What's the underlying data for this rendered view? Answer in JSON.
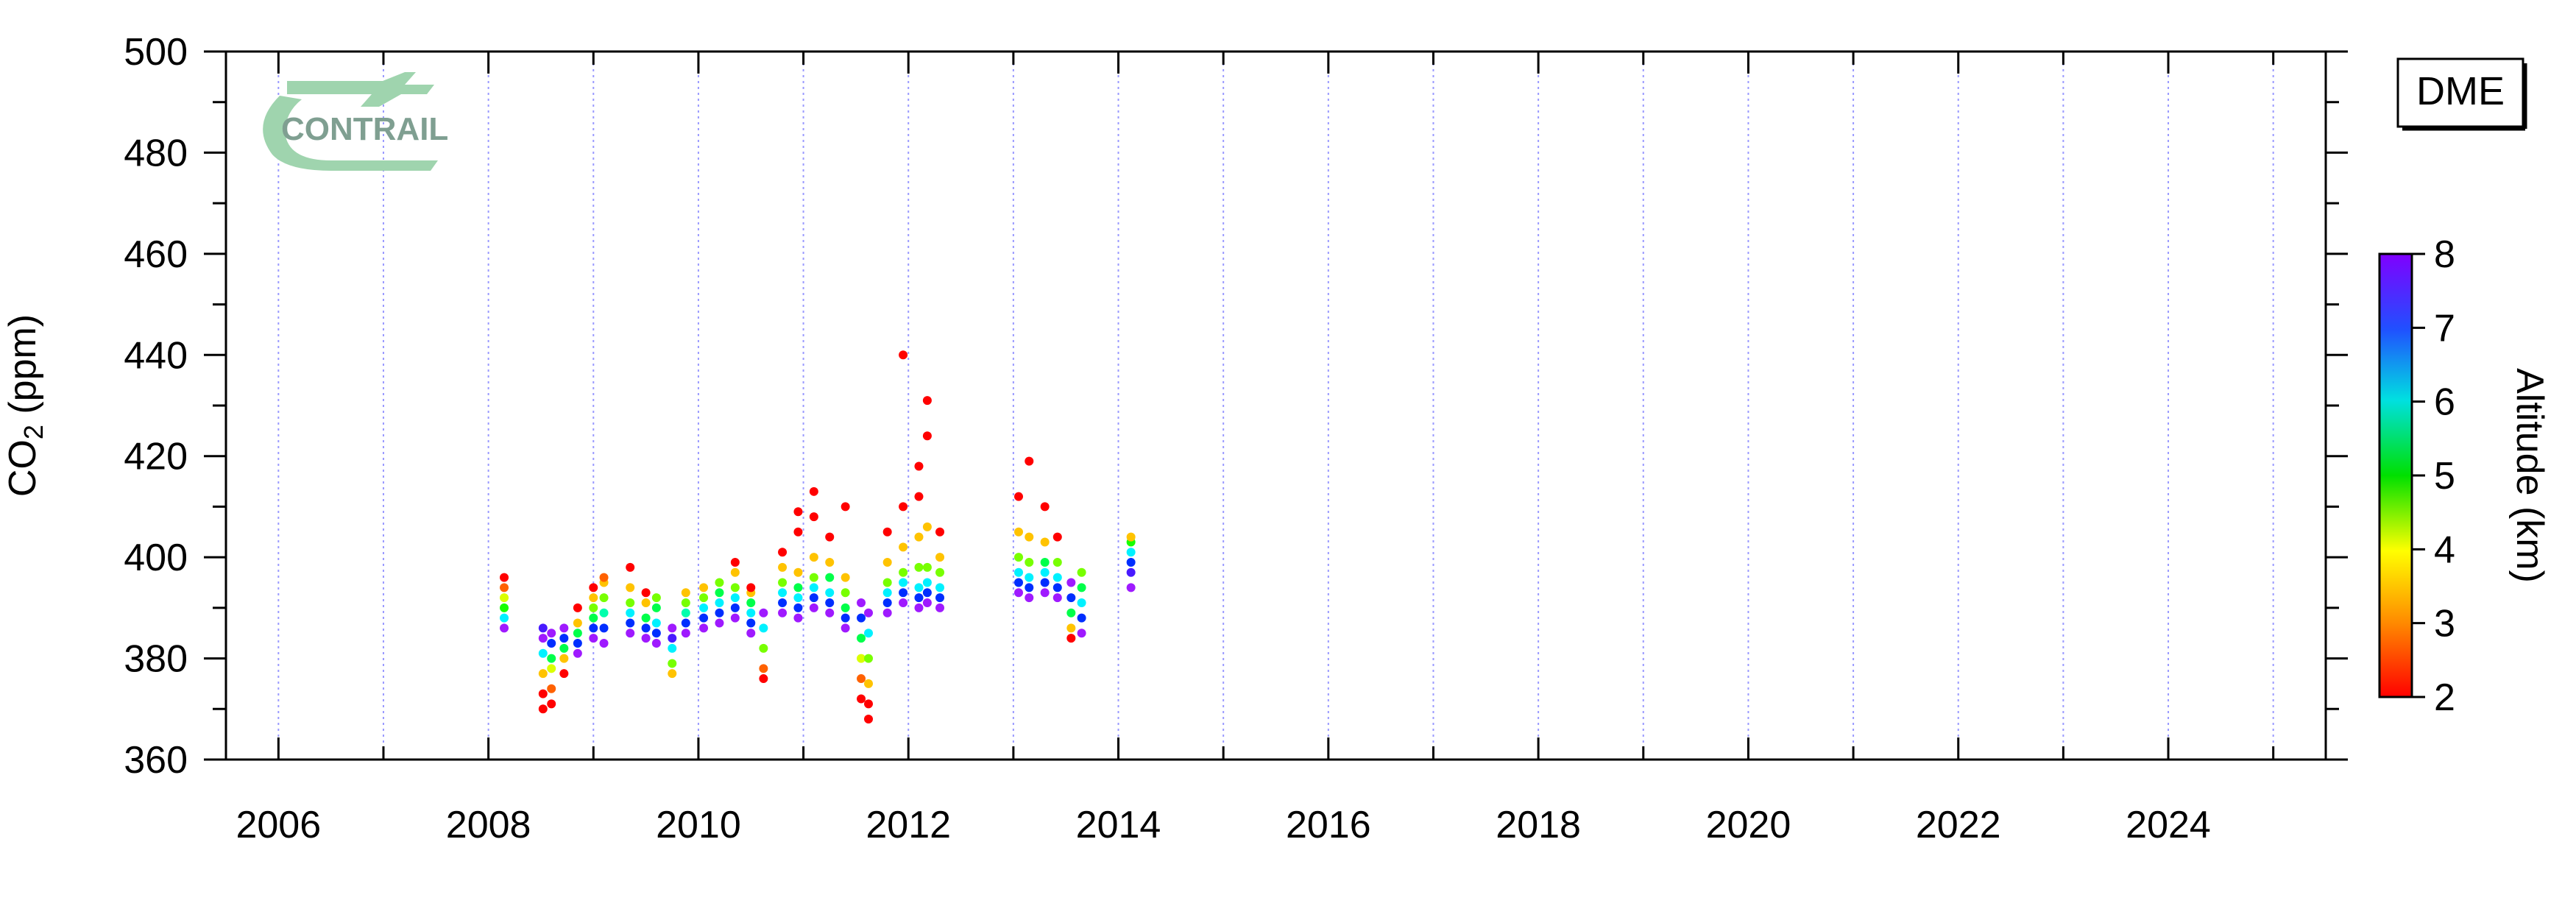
{
  "chart_data": {
    "type": "scatter",
    "station_label": "DME",
    "logo_text": "CONTRAIL",
    "ylabel": {
      "main": "CO",
      "sub": "2",
      "unit": " (ppm)"
    },
    "xlabel": "",
    "xlim": [
      2005.5,
      2025.5
    ],
    "ylim": [
      360,
      500
    ],
    "x_ticks": [
      2006,
      2008,
      2010,
      2012,
      2014,
      2016,
      2018,
      2020,
      2022,
      2024
    ],
    "x_tick_labels": [
      "2006",
      "2008",
      "2010",
      "2012",
      "2014",
      "2016",
      "2018",
      "2020",
      "2022",
      "2024"
    ],
    "y_ticks": [
      360,
      380,
      400,
      420,
      440,
      460,
      480,
      500
    ],
    "y_tick_labels": [
      "360",
      "380",
      "400",
      "420",
      "440",
      "460",
      "480",
      "500"
    ],
    "gridlines": "vertical dotted at every year",
    "colorbar": {
      "label": "Altitude (km)",
      "range": [
        2,
        8
      ],
      "ticks": [
        2,
        3,
        4,
        5,
        6,
        7,
        8
      ],
      "tick_labels": [
        "2",
        "3",
        "4",
        "5",
        "6",
        "7",
        "8"
      ],
      "colormap": "rainbow: red (low) to violet (high)"
    },
    "series": [
      {
        "time": 2008.15,
        "co2": [
          [
            386,
            8
          ],
          [
            388,
            6
          ],
          [
            390,
            4.5
          ],
          [
            392,
            3.5
          ],
          [
            394,
            2.5
          ],
          [
            396,
            2
          ]
        ]
      },
      {
        "time": 2008.52,
        "co2": [
          [
            370,
            2
          ],
          [
            373,
            2
          ],
          [
            377,
            3
          ],
          [
            381,
            6
          ],
          [
            384,
            8
          ],
          [
            386,
            7.5
          ]
        ]
      },
      {
        "time": 2008.6,
        "co2": [
          [
            371,
            2
          ],
          [
            374,
            2.5
          ],
          [
            378,
            3.5
          ],
          [
            380,
            5
          ],
          [
            383,
            7
          ],
          [
            385,
            8
          ]
        ]
      },
      {
        "time": 2008.72,
        "co2": [
          [
            377,
            2
          ],
          [
            380,
            3
          ],
          [
            382,
            5
          ],
          [
            384,
            7
          ],
          [
            386,
            8
          ]
        ]
      },
      {
        "time": 2008.85,
        "co2": [
          [
            381,
            8
          ],
          [
            383,
            7
          ],
          [
            385,
            5
          ],
          [
            387,
            3
          ],
          [
            390,
            2
          ]
        ]
      },
      {
        "time": 2009.0,
        "co2": [
          [
            384,
            8
          ],
          [
            386,
            7
          ],
          [
            388,
            5
          ],
          [
            390,
            4
          ],
          [
            392,
            3
          ],
          [
            394,
            2
          ]
        ]
      },
      {
        "time": 2009.1,
        "co2": [
          [
            383,
            8
          ],
          [
            386,
            7
          ],
          [
            389,
            5.5
          ],
          [
            392,
            4
          ],
          [
            395,
            3
          ],
          [
            396,
            2.5
          ]
        ]
      },
      {
        "time": 2009.35,
        "co2": [
          [
            385,
            8
          ],
          [
            387,
            7
          ],
          [
            389,
            6
          ],
          [
            391,
            4
          ],
          [
            394,
            3
          ],
          [
            398,
            2
          ]
        ]
      },
      {
        "time": 2009.5,
        "co2": [
          [
            384,
            8
          ],
          [
            386,
            7
          ],
          [
            388,
            5
          ],
          [
            391,
            3
          ],
          [
            393,
            2
          ]
        ]
      },
      {
        "time": 2009.6,
        "co2": [
          [
            383,
            8
          ],
          [
            385,
            7
          ],
          [
            387,
            6
          ],
          [
            390,
            5
          ],
          [
            392,
            4
          ]
        ]
      },
      {
        "time": 2009.75,
        "co2": [
          [
            377,
            3
          ],
          [
            379,
            4
          ],
          [
            382,
            6
          ],
          [
            384,
            7.5
          ],
          [
            386,
            8
          ]
        ]
      },
      {
        "time": 2009.88,
        "co2": [
          [
            385,
            8
          ],
          [
            387,
            7
          ],
          [
            389,
            5.5
          ],
          [
            391,
            4
          ],
          [
            393,
            3
          ]
        ]
      },
      {
        "time": 2010.05,
        "co2": [
          [
            386,
            8
          ],
          [
            388,
            7
          ],
          [
            390,
            6
          ],
          [
            392,
            4
          ],
          [
            394,
            3
          ]
        ]
      },
      {
        "time": 2010.2,
        "co2": [
          [
            387,
            8
          ],
          [
            389,
            7
          ],
          [
            391,
            6
          ],
          [
            393,
            5
          ],
          [
            395,
            4
          ]
        ]
      },
      {
        "time": 2010.35,
        "co2": [
          [
            388,
            8
          ],
          [
            390,
            7
          ],
          [
            392,
            6
          ],
          [
            394,
            4
          ],
          [
            397,
            3
          ],
          [
            399,
            2
          ]
        ]
      },
      {
        "time": 2010.5,
        "co2": [
          [
            385,
            8
          ],
          [
            387,
            7
          ],
          [
            389,
            6
          ],
          [
            391,
            5
          ],
          [
            393,
            3
          ],
          [
            394,
            2
          ]
        ]
      },
      {
        "time": 2010.62,
        "co2": [
          [
            376,
            2
          ],
          [
            378,
            2.5
          ],
          [
            382,
            4
          ],
          [
            386,
            6
          ],
          [
            389,
            8
          ]
        ]
      },
      {
        "time": 2010.8,
        "co2": [
          [
            389,
            8
          ],
          [
            391,
            7
          ],
          [
            393,
            6
          ],
          [
            395,
            4
          ],
          [
            398,
            3
          ],
          [
            401,
            2
          ]
        ]
      },
      {
        "time": 2010.95,
        "co2": [
          [
            388,
            8
          ],
          [
            390,
            7
          ],
          [
            392,
            6
          ],
          [
            394,
            5
          ],
          [
            397,
            3
          ],
          [
            405,
            2
          ],
          [
            409,
            2
          ]
        ]
      },
      {
        "time": 2011.1,
        "co2": [
          [
            390,
            8
          ],
          [
            392,
            7
          ],
          [
            394,
            6
          ],
          [
            396,
            4
          ],
          [
            400,
            3
          ],
          [
            408,
            2
          ],
          [
            413,
            2
          ]
        ]
      },
      {
        "time": 2011.25,
        "co2": [
          [
            389,
            8
          ],
          [
            391,
            7
          ],
          [
            393,
            6
          ],
          [
            396,
            5
          ],
          [
            399,
            3
          ],
          [
            404,
            2
          ]
        ]
      },
      {
        "time": 2011.4,
        "co2": [
          [
            386,
            8
          ],
          [
            388,
            7
          ],
          [
            390,
            5
          ],
          [
            393,
            4
          ],
          [
            396,
            3
          ],
          [
            410,
            2
          ]
        ]
      },
      {
        "time": 2011.55,
        "co2": [
          [
            372,
            2
          ],
          [
            376,
            2.5
          ],
          [
            380,
            3.5
          ],
          [
            384,
            5
          ],
          [
            388,
            7
          ],
          [
            391,
            8
          ]
        ]
      },
      {
        "time": 2011.62,
        "co2": [
          [
            368,
            2
          ],
          [
            371,
            2
          ],
          [
            375,
            3
          ],
          [
            380,
            4
          ],
          [
            385,
            6
          ],
          [
            389,
            8
          ]
        ]
      },
      {
        "time": 2011.8,
        "co2": [
          [
            389,
            8
          ],
          [
            391,
            7
          ],
          [
            393,
            6
          ],
          [
            395,
            4
          ],
          [
            399,
            3
          ],
          [
            405,
            2
          ]
        ]
      },
      {
        "time": 2011.95,
        "co2": [
          [
            391,
            8
          ],
          [
            393,
            7
          ],
          [
            395,
            6
          ],
          [
            397,
            4
          ],
          [
            402,
            3
          ],
          [
            410,
            2
          ],
          [
            440,
            2
          ]
        ]
      },
      {
        "time": 2012.1,
        "co2": [
          [
            390,
            8
          ],
          [
            392,
            7
          ],
          [
            394,
            6
          ],
          [
            398,
            4
          ],
          [
            404,
            3
          ],
          [
            412,
            2
          ],
          [
            418,
            2
          ]
        ]
      },
      {
        "time": 2012.18,
        "co2": [
          [
            391,
            8
          ],
          [
            393,
            7
          ],
          [
            395,
            6
          ],
          [
            398,
            4
          ],
          [
            406,
            3
          ],
          [
            424,
            2
          ],
          [
            431,
            2
          ]
        ]
      },
      {
        "time": 2012.3,
        "co2": [
          [
            390,
            8
          ],
          [
            392,
            7
          ],
          [
            394,
            6
          ],
          [
            397,
            4
          ],
          [
            400,
            3
          ],
          [
            405,
            2
          ]
        ]
      },
      {
        "time": 2013.05,
        "co2": [
          [
            393,
            8
          ],
          [
            395,
            7
          ],
          [
            397,
            6
          ],
          [
            400,
            4
          ],
          [
            405,
            3
          ],
          [
            412,
            2
          ]
        ]
      },
      {
        "time": 2013.15,
        "co2": [
          [
            392,
            8
          ],
          [
            394,
            7
          ],
          [
            396,
            6
          ],
          [
            399,
            4
          ],
          [
            404,
            3
          ],
          [
            419,
            2
          ]
        ]
      },
      {
        "time": 2013.3,
        "co2": [
          [
            393,
            8
          ],
          [
            395,
            7
          ],
          [
            397,
            6
          ],
          [
            399,
            5
          ],
          [
            403,
            3
          ],
          [
            410,
            2
          ]
        ]
      },
      {
        "time": 2013.42,
        "co2": [
          [
            392,
            8
          ],
          [
            394,
            7
          ],
          [
            396,
            6
          ],
          [
            399,
            4
          ],
          [
            404,
            2
          ]
        ]
      },
      {
        "time": 2013.55,
        "co2": [
          [
            384,
            2
          ],
          [
            386,
            3
          ],
          [
            389,
            5
          ],
          [
            392,
            7
          ],
          [
            395,
            8
          ]
        ]
      },
      {
        "time": 2013.65,
        "co2": [
          [
            385,
            8
          ],
          [
            388,
            7
          ],
          [
            391,
            6
          ],
          [
            394,
            5
          ],
          [
            397,
            4
          ]
        ]
      },
      {
        "time": 2014.12,
        "co2": [
          [
            394,
            8
          ],
          [
            397,
            7.5
          ],
          [
            399,
            7
          ],
          [
            401,
            6
          ],
          [
            403,
            4.5
          ],
          [
            404,
            3
          ]
        ]
      }
    ]
  }
}
